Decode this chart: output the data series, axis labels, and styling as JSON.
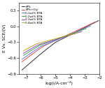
{
  "title": "",
  "xlabel": "log(i/A·cm⁻²)",
  "ylabel": "E Vs. SCE/(V)",
  "xlim": [
    -7.5,
    -2.0
  ],
  "ylim": [
    -0.9,
    0.45
  ],
  "legend_entries": [
    "KPS",
    "KPS+Gly",
    "0.1wt% BTA",
    "0.2wt% BTA",
    "0.3wt% BTA",
    "0.4wt% BTA"
  ],
  "colors": [
    "#222222",
    "#ff3333",
    "#4477ff",
    "#33aa33",
    "#9933cc",
    "#bbaa00"
  ],
  "background_color": "#ffffff",
  "xticks": [
    -7,
    -6,
    -5,
    -4,
    -3,
    -2
  ],
  "yticks": [
    -0.9,
    -0.6,
    -0.3,
    0.0,
    0.3
  ],
  "curves": [
    {
      "label": "KPS",
      "color": "#222222",
      "E_corr": -0.3,
      "log_i_corr": -5.0,
      "ba": 0.14,
      "bc": 0.2,
      "log_i_an_max": -2.05,
      "log_i_cat_min": -7.3,
      "bc_nonlin": 0.5
    },
    {
      "label": "KPS+Gly",
      "color": "#ff3333",
      "E_corr": -0.37,
      "log_i_corr": -5.8,
      "ba": 0.13,
      "bc": 0.18,
      "log_i_an_max": -2.3,
      "log_i_cat_min": -7.3,
      "bc_nonlin": 0.45
    },
    {
      "label": "0.1wt% BTA",
      "color": "#4477ff",
      "E_corr": -0.38,
      "log_i_corr": -6.0,
      "ba": 0.115,
      "bc": 0.17,
      "log_i_an_max": -2.6,
      "log_i_cat_min": -7.3,
      "bc_nonlin": 0.4
    },
    {
      "label": "0.2wt% BTA",
      "color": "#33aa33",
      "E_corr": -0.36,
      "log_i_corr": -6.1,
      "ba": 0.1,
      "bc": 0.16,
      "log_i_an_max": -2.9,
      "log_i_cat_min": -7.2,
      "bc_nonlin": 0.35
    },
    {
      "label": "0.3wt% BTA",
      "color": "#9933cc",
      "E_corr": -0.35,
      "log_i_corr": -6.2,
      "ba": 0.085,
      "bc": 0.15,
      "log_i_an_max": -3.2,
      "log_i_cat_min": -7.2,
      "bc_nonlin": 0.3
    },
    {
      "label": "0.4wt% BTA",
      "color": "#bbaa00",
      "E_corr": -0.33,
      "log_i_corr": -6.3,
      "ba": 0.075,
      "bc": 0.14,
      "log_i_an_max": -3.5,
      "log_i_cat_min": -7.2,
      "bc_nonlin": 0.25
    }
  ]
}
